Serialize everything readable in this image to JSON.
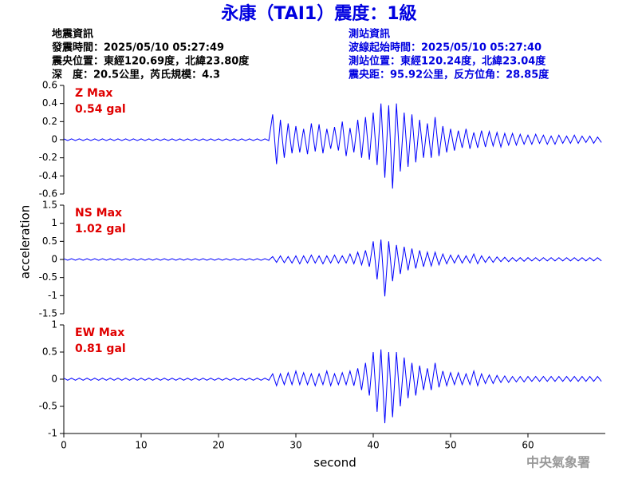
{
  "header": {
    "title": "永康（TAI1）震度：1級",
    "left": [
      "地震資訊",
      "發震時間：2025/05/10 05:27:49",
      "震央位置：東經120.69度，北緯23.80度",
      "深　度：20.5公里，芮氏規模：4.3"
    ],
    "right": [
      "測站資訊",
      "波線起始時間：2025/05/10 05:27:40",
      "測站位置：東經120.24度，北緯23.04度",
      "震央距：95.92公里，反方位角：28.85度"
    ]
  },
  "watermark": "中央氣象署",
  "chart_data": {
    "type": "line",
    "xlabel": "second",
    "ylabel": "acceleration",
    "xlim": [
      0,
      70
    ],
    "xticks": [
      0,
      10,
      20,
      30,
      40,
      50,
      60
    ],
    "x": [
      0,
      0.5,
      1,
      1.5,
      2,
      2.5,
      3,
      3.5,
      4,
      4.5,
      5,
      5.5,
      6,
      6.5,
      7,
      7.5,
      8,
      8.5,
      9,
      9.5,
      10,
      10.5,
      11,
      11.5,
      12,
      12.5,
      13,
      13.5,
      14,
      14.5,
      15,
      15.5,
      16,
      16.5,
      17,
      17.5,
      18,
      18.5,
      19,
      19.5,
      20,
      20.5,
      21,
      21.5,
      22,
      22.5,
      23,
      23.5,
      24,
      24.5,
      25,
      25.5,
      26,
      26.5,
      27,
      27.5,
      28,
      28.5,
      29,
      29.5,
      30,
      30.5,
      31,
      31.5,
      32,
      32.5,
      33,
      33.5,
      34,
      34.5,
      35,
      35.5,
      36,
      36.5,
      37,
      37.5,
      38,
      38.5,
      39,
      39.5,
      40,
      40.5,
      41,
      41.5,
      42,
      42.5,
      43,
      43.5,
      44,
      44.5,
      45,
      45.5,
      46,
      46.5,
      47,
      47.5,
      48,
      48.5,
      49,
      49.5,
      50,
      50.5,
      51,
      51.5,
      52,
      52.5,
      53,
      53.5,
      54,
      54.5,
      55,
      55.5,
      56,
      56.5,
      57,
      57.5,
      58,
      58.5,
      59,
      59.5,
      60,
      60.5,
      61,
      61.5,
      62,
      62.5,
      63,
      63.5,
      64,
      64.5,
      65,
      65.5,
      66,
      66.5,
      67,
      67.5,
      68,
      68.5,
      69,
      69.5
    ],
    "panels": [
      {
        "label": "Z Max",
        "max_label": "0.54 gal",
        "ylim": [
          -0.6,
          0.6
        ],
        "yticks": [
          0.6,
          0.4,
          0.2,
          0,
          -0.2,
          -0.4,
          -0.6
        ],
        "series": [
          {
            "color": "#0000ff",
            "values": [
              0.01,
              -0.01,
              0.01,
              -0.01,
              0.01,
              -0.01,
              0.01,
              -0.01,
              0.01,
              -0.01,
              0.01,
              -0.01,
              0.01,
              -0.01,
              0.01,
              -0.01,
              0.01,
              -0.01,
              0.01,
              -0.01,
              0.01,
              -0.01,
              0.01,
              -0.01,
              0.01,
              -0.01,
              0.01,
              -0.01,
              0.01,
              -0.01,
              0.01,
              -0.01,
              0.01,
              -0.01,
              0.01,
              -0.01,
              0.01,
              -0.01,
              0.01,
              -0.01,
              0.01,
              -0.01,
              0.01,
              -0.01,
              0.01,
              -0.01,
              0.01,
              -0.01,
              0.01,
              -0.01,
              0.01,
              -0.01,
              0.01,
              -0.01,
              0.28,
              -0.27,
              0.22,
              -0.2,
              0.18,
              -0.15,
              0.15,
              -0.14,
              0.12,
              -0.16,
              0.18,
              -0.13,
              0.17,
              -0.15,
              0.12,
              -0.1,
              0.14,
              -0.12,
              0.2,
              -0.18,
              0.13,
              -0.14,
              0.22,
              -0.2,
              0.25,
              -0.22,
              0.3,
              -0.28,
              0.4,
              -0.42,
              0.38,
              -0.54,
              0.4,
              -0.35,
              0.3,
              -0.3,
              0.28,
              -0.25,
              0.22,
              -0.2,
              0.18,
              -0.2,
              0.25,
              -0.18,
              0.15,
              -0.14,
              0.12,
              -0.12,
              0.1,
              -0.09,
              0.12,
              -0.1,
              0.08,
              -0.09,
              0.1,
              -0.08,
              0.09,
              -0.07,
              0.08,
              -0.08,
              0.07,
              -0.06,
              0.07,
              -0.06,
              0.06,
              -0.05,
              0.05,
              -0.05,
              0.06,
              -0.04,
              0.05,
              -0.05,
              0.04,
              -0.05,
              0.05,
              -0.04,
              0.04,
              -0.04,
              0.05,
              -0.04,
              0.04,
              -0.03,
              0.04,
              -0.04,
              0.03,
              -0.03
            ]
          }
        ]
      },
      {
        "label": "NS Max",
        "max_label": "1.02 gal",
        "ylim": [
          -1.5,
          1.5
        ],
        "yticks": [
          1.5,
          1,
          0.5,
          0,
          -0.5,
          -1,
          -1.5
        ],
        "series": [
          {
            "color": "#0000ff",
            "values": [
              0.02,
              -0.02,
              0.02,
              -0.02,
              0.02,
              -0.02,
              0.02,
              -0.02,
              0.02,
              -0.02,
              0.02,
              -0.02,
              0.02,
              -0.02,
              0.02,
              -0.02,
              0.02,
              -0.02,
              0.02,
              -0.02,
              0.02,
              -0.02,
              0.02,
              -0.02,
              0.02,
              -0.02,
              0.02,
              -0.02,
              0.02,
              -0.02,
              0.02,
              -0.02,
              0.02,
              -0.02,
              0.02,
              -0.02,
              0.02,
              -0.02,
              0.02,
              -0.02,
              0.02,
              -0.02,
              0.02,
              -0.02,
              0.02,
              -0.02,
              0.02,
              -0.02,
              0.02,
              -0.02,
              0.02,
              -0.02,
              0.02,
              -0.02,
              0.08,
              -0.08,
              0.1,
              -0.09,
              0.08,
              -0.1,
              0.1,
              -0.12,
              0.1,
              -0.1,
              0.12,
              -0.1,
              0.1,
              -0.12,
              0.1,
              -0.1,
              0.12,
              -0.1,
              0.1,
              -0.1,
              0.15,
              -0.12,
              0.2,
              -0.15,
              0.25,
              -0.2,
              0.5,
              -0.55,
              0.55,
              -1.02,
              0.5,
              -0.6,
              0.4,
              -0.4,
              0.35,
              -0.3,
              0.3,
              -0.25,
              0.25,
              -0.2,
              0.2,
              -0.18,
              0.2,
              -0.15,
              0.15,
              -0.12,
              0.12,
              -0.1,
              0.12,
              -0.1,
              0.1,
              -0.1,
              0.15,
              -0.12,
              0.1,
              -0.08,
              0.08,
              -0.08,
              0.07,
              -0.06,
              0.06,
              -0.06,
              0.05,
              -0.05,
              0.05,
              -0.05,
              0.05,
              -0.04,
              0.05,
              -0.04,
              0.05,
              -0.04,
              0.05,
              -0.04,
              0.05,
              -0.04,
              0.05,
              -0.04,
              0.05,
              -0.04,
              0.05,
              -0.04,
              0.05,
              -0.04,
              0.05,
              -0.04
            ]
          }
        ]
      },
      {
        "label": "EW Max",
        "max_label": "0.81 gal",
        "ylim": [
          -1,
          1
        ],
        "yticks": [
          1,
          0.5,
          0,
          -0.5,
          -1
        ],
        "series": [
          {
            "color": "#0000ff",
            "values": [
              0.02,
              -0.02,
              0.02,
              -0.02,
              0.02,
              -0.02,
              0.02,
              -0.02,
              0.02,
              -0.02,
              0.02,
              -0.02,
              0.02,
              -0.02,
              0.02,
              -0.02,
              0.02,
              -0.02,
              0.02,
              -0.02,
              0.02,
              -0.02,
              0.02,
              -0.02,
              0.02,
              -0.02,
              0.02,
              -0.02,
              0.02,
              -0.02,
              0.02,
              -0.02,
              0.02,
              -0.02,
              0.02,
              -0.02,
              0.02,
              -0.02,
              0.02,
              -0.02,
              0.02,
              -0.02,
              0.02,
              -0.02,
              0.02,
              -0.02,
              0.02,
              -0.02,
              0.02,
              -0.02,
              0.02,
              -0.02,
              0.02,
              -0.02,
              0.1,
              -0.12,
              0.1,
              -0.1,
              0.12,
              -0.1,
              0.15,
              -0.1,
              0.12,
              -0.1,
              0.1,
              -0.12,
              0.1,
              -0.1,
              0.15,
              -0.12,
              0.1,
              -0.1,
              0.12,
              -0.1,
              0.15,
              -0.12,
              0.2,
              -0.2,
              0.3,
              -0.3,
              0.5,
              -0.6,
              0.55,
              -0.81,
              0.5,
              -0.7,
              0.5,
              -0.5,
              0.4,
              -0.35,
              0.3,
              -0.3,
              0.25,
              -0.2,
              0.2,
              -0.2,
              0.3,
              -0.15,
              0.15,
              -0.12,
              0.12,
              -0.1,
              0.12,
              -0.1,
              0.1,
              -0.1,
              0.15,
              -0.12,
              0.1,
              -0.08,
              0.08,
              -0.08,
              0.07,
              -0.06,
              0.06,
              -0.06,
              0.05,
              -0.05,
              0.05,
              -0.05,
              0.05,
              -0.04,
              0.05,
              -0.04,
              0.05,
              -0.04,
              0.05,
              -0.04,
              0.05,
              -0.04,
              0.05,
              -0.04,
              0.05,
              -0.04,
              0.05,
              -0.04,
              0.05,
              -0.04,
              0.05,
              -0.04
            ]
          }
        ]
      }
    ]
  }
}
